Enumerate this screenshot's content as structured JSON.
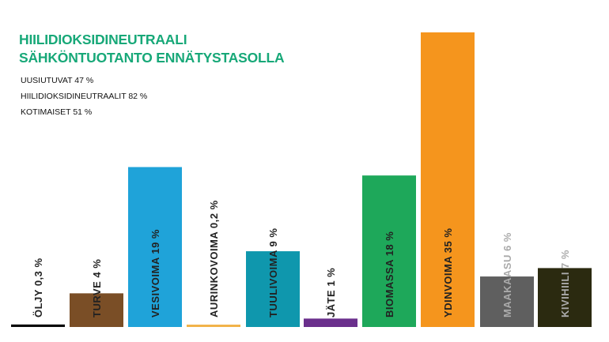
{
  "chart_data": {
    "type": "bar",
    "title": [
      "HIILIDIOKSIDINEUTRAALI",
      "SÄHKÖNTUOTANTO ENNÄTYSTASOLLA"
    ],
    "title_color": "#17a878",
    "stats": [
      "UUSIUTUVAT  47 %",
      "HIILIDIOKSIDINEUTRAALIT 82 %",
      "KOTIMAISET 51 %"
    ],
    "categories": [
      "ÖLJY",
      "TURVE",
      "VESIVOIMA",
      "AURINKOVOIMA",
      "TUULIVOIMA",
      "JÄTE",
      "BIOMASSA",
      "YDINVOIMA",
      "MAAKAASU",
      "KIVIHIILI"
    ],
    "values": [
      0.3,
      4,
      19,
      0.2,
      9,
      1,
      18,
      35,
      6,
      7
    ],
    "labels": [
      "ÖLJY 0,3 %",
      "TURVE 4 %",
      "VESIVOIMA 19 %",
      "AURINKOVOIMA 0,2 %",
      "TUULIVOIMA 9 %",
      "JÄTE 1 %",
      "BIOMASSA 18 %",
      "YDINVOIMA 35 %",
      "MAAKAASU 6 %",
      "KIVIHIILI 7 %"
    ],
    "colors": [
      "#0a0a0a",
      "#7a4e26",
      "#1fa3d9",
      "#f2b34a",
      "#0f97ad",
      "#6a2f8c",
      "#1ea85a",
      "#f5951d",
      "#5f5f5f",
      "#2b2a10"
    ],
    "label_colors": [
      "#222222",
      "#222222",
      "#222222",
      "#222222",
      "#222222",
      "#222222",
      "#222222",
      "#222222",
      "#aaaaaa",
      "#aaaaaa"
    ],
    "xlabel": "",
    "ylabel": "",
    "grid": false,
    "legend": "none"
  }
}
